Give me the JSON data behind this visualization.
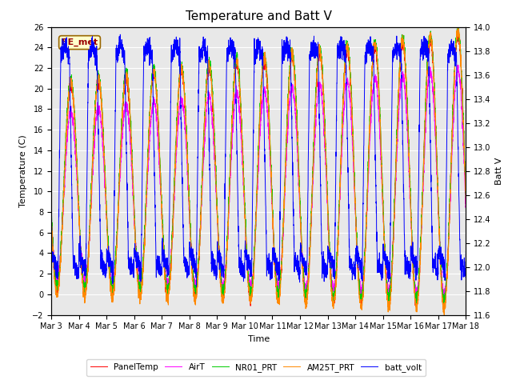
{
  "title": "Temperature and Batt V",
  "xlabel": "Time",
  "ylabel_left": "Temperature (C)",
  "ylabel_right": "Batt V",
  "annotation": "EE_met",
  "ylim_left": [
    -2,
    26
  ],
  "ylim_right": [
    11.6,
    14.0
  ],
  "yticks_left": [
    -2,
    0,
    2,
    4,
    6,
    8,
    10,
    12,
    14,
    16,
    18,
    20,
    22,
    24,
    26
  ],
  "yticks_right": [
    11.6,
    11.8,
    12.0,
    12.2,
    12.4,
    12.6,
    12.8,
    13.0,
    13.2,
    13.4,
    13.6,
    13.8,
    14.0
  ],
  "xtick_labels": [
    "Mar 3",
    "Mar 4",
    "Mar 5",
    "Mar 6",
    "Mar 7",
    "Mar 8",
    "Mar 9",
    "Mar 10",
    "Mar 11",
    "Mar 12",
    "Mar 13",
    "Mar 14",
    "Mar 15",
    "Mar 16",
    "Mar 17",
    "Mar 18"
  ],
  "colors": {
    "PanelTemp": "#ff0000",
    "AirT": "#ff00ff",
    "NR01_PRT": "#00cc00",
    "AM25T_PRT": "#ff8800",
    "batt_volt": "#0000ff"
  },
  "legend_labels": [
    "PanelTemp",
    "AirT",
    "NR01_PRT",
    "AM25T_PRT",
    "batt_volt"
  ],
  "fig_bg": "#ffffff",
  "plot_bg": "#e8e8e8",
  "grid_color": "#ffffff",
  "n_points": 4000,
  "num_days": 15,
  "title_fontsize": 11,
  "axis_fontsize": 8,
  "tick_fontsize": 7,
  "annotation_fontsize": 8
}
